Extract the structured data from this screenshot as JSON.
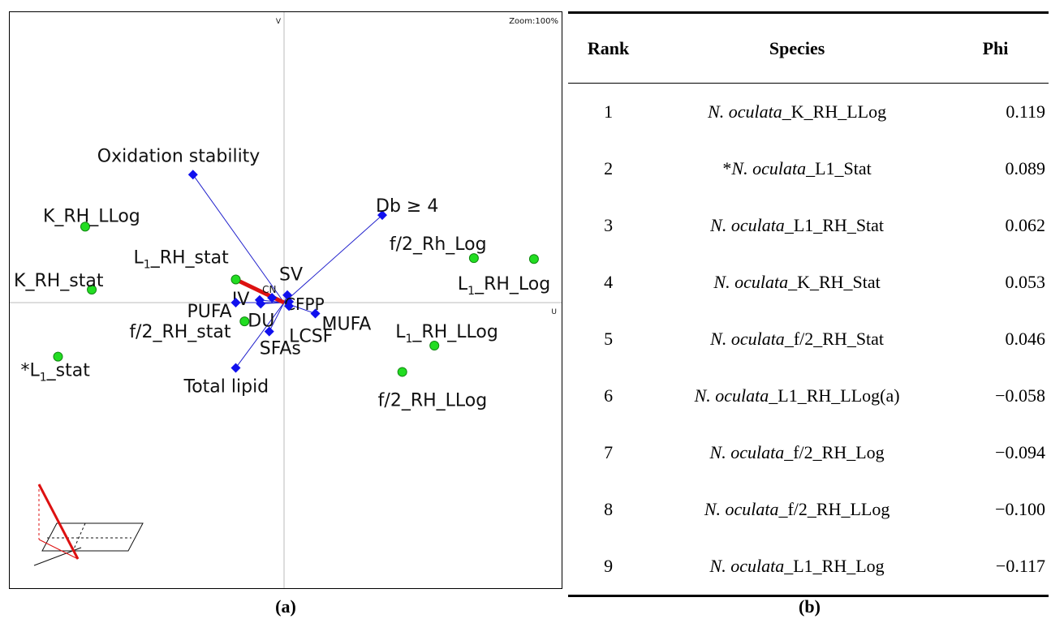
{
  "chart_data": {
    "type": "scatter",
    "title": "",
    "zoom_label": "Zoom:100%",
    "axis_labels": {
      "vertical": "V",
      "horizontal": "U"
    },
    "xlim": [
      -1,
      1
    ],
    "ylim": [
      -1,
      1
    ],
    "grid": false,
    "series": [
      {
        "name": "",
        "marker": "green-circle",
        "color": "#22dd22",
        "points": [
          {
            "label": "K_RH_LLog",
            "label_parts": [
              "K_RH_LLog"
            ],
            "x": -0.725,
            "y": 0.263
          },
          {
            "label": "K_RH_stat",
            "label_parts": [
              "K_RH_stat"
            ],
            "x": -0.701,
            "y": 0.045
          },
          {
            "label": "L1_RH_stat",
            "label_parts": [
              "L",
              "1",
              "_RH_stat"
            ],
            "x": -0.176,
            "y": 0.08
          },
          {
            "label": "*L1_stat",
            "label_parts": [
              "*L",
              "1",
              "_stat"
            ],
            "x": -0.824,
            "y": -0.187
          },
          {
            "label": "f/2_RH_stat",
            "label_parts": [
              "f/2_RH_stat"
            ],
            "x": -0.144,
            "y": -0.065
          },
          {
            "label": "f/2_Rh_Log",
            "label_parts": [
              "f/2_Rh_Log"
            ],
            "x": 0.692,
            "y": 0.154
          },
          {
            "label": "L1_RH_Log",
            "label_parts": [
              "L",
              "1",
              "_RH_Log"
            ],
            "x": 0.911,
            "y": 0.151
          },
          {
            "label": "L1_RH_LLog",
            "label_parts": [
              "L",
              "1",
              "_RH_LLog"
            ],
            "x": 0.548,
            "y": -0.149
          },
          {
            "label": "f/2_RH_LLog",
            "label_parts": [
              "f/2_RH_LLog"
            ],
            "x": 0.431,
            "y": -0.24
          }
        ]
      },
      {
        "name": "",
        "marker": "blue-diamond",
        "color": "#1010ee",
        "vectors_from_origin": true,
        "points": [
          {
            "label": "Oxidation stability",
            "x": -0.332,
            "y": 0.443
          },
          {
            "label": "Db ≥ 4",
            "x": 0.358,
            "y": 0.303
          },
          {
            "label": "SV",
            "x": 0.012,
            "y": 0.026
          },
          {
            "label": "IV",
            "x": -0.089,
            "y": 0.009
          },
          {
            "label": "CN",
            "x": -0.044,
            "y": 0.017
          },
          {
            "label": "PUFA",
            "x": -0.176,
            "y": 0.0
          },
          {
            "label": "DU",
            "x": -0.085,
            "y": -0.004
          },
          {
            "label": "CFPP",
            "x": 0.018,
            "y": 0.003
          },
          {
            "label": "MUFA",
            "x": 0.114,
            "y": -0.038
          },
          {
            "label": "LCSF",
            "x": 0.018,
            "y": -0.012
          },
          {
            "label": "SFAs",
            "x": -0.054,
            "y": -0.1
          },
          {
            "label": "Total lipid",
            "x": -0.176,
            "y": -0.226
          }
        ]
      }
    ],
    "highlight_vector": {
      "color": "#dd1111",
      "x": -0.176,
      "y": 0.08
    }
  },
  "figure_table": {
    "headers": {
      "rank": "Rank",
      "species": "Species",
      "phi": "Phi"
    },
    "rows": [
      {
        "rank": "1",
        "prefix": "",
        "genus": "N. oculata",
        "suffix": "_K_RH_LLog",
        "phi": "0.119"
      },
      {
        "rank": "2",
        "prefix": "*",
        "genus": "N. oculata",
        "suffix": "_L1_Stat",
        "phi": "0.089"
      },
      {
        "rank": "3",
        "prefix": "",
        "genus": "N. oculata",
        "suffix": "_L1_RH_Stat",
        "phi": "0.062"
      },
      {
        "rank": "4",
        "prefix": "",
        "genus": "N. oculata",
        "suffix": "_K_RH_Stat",
        "phi": "0.053"
      },
      {
        "rank": "5",
        "prefix": "",
        "genus": "N. oculata",
        "suffix": "_f/2_RH_Stat",
        "phi": "0.046"
      },
      {
        "rank": "6",
        "prefix": "",
        "genus": "N. oculata",
        "suffix": "_L1_RH_LLog(a)",
        "phi": "−0.058"
      },
      {
        "rank": "7",
        "prefix": "",
        "genus": "N. oculata",
        "suffix": "_f/2_RH_Log",
        "phi": "−0.094"
      },
      {
        "rank": "8",
        "prefix": "",
        "genus": "N. oculata",
        "suffix": "_f/2_RH_LLog",
        "phi": "−0.100"
      },
      {
        "rank": "9",
        "prefix": "",
        "genus": "N. oculata",
        "suffix": "_L1_RH_Log",
        "phi": "−0.117"
      }
    ]
  },
  "captions": {
    "a": "(a)",
    "b": "(b)"
  }
}
